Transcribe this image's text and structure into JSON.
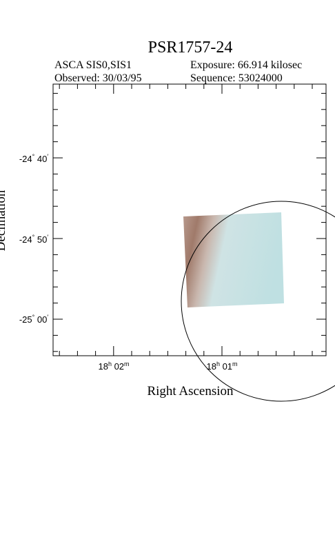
{
  "header": {
    "title": "PSR1757-24",
    "instrument": "ASCA SIS0,SIS1",
    "exposure": "Exposure: 66.914 kilosec",
    "observed": "Observed: 30/03/95",
    "sequence": "Sequence: 53024000"
  },
  "axes": {
    "x_label": "Right Ascension",
    "y_label": "Declination",
    "y_tick_labels": [
      [
        "-24",
        "°",
        " 40",
        "′"
      ],
      [
        "-24",
        "°",
        " 50",
        "′"
      ],
      [
        "-25",
        "°",
        " 00",
        "′"
      ]
    ],
    "x_tick_labels": [
      [
        "18",
        "h",
        " 02",
        "m"
      ],
      [
        "18",
        "h",
        " 01",
        "m"
      ]
    ]
  }
}
